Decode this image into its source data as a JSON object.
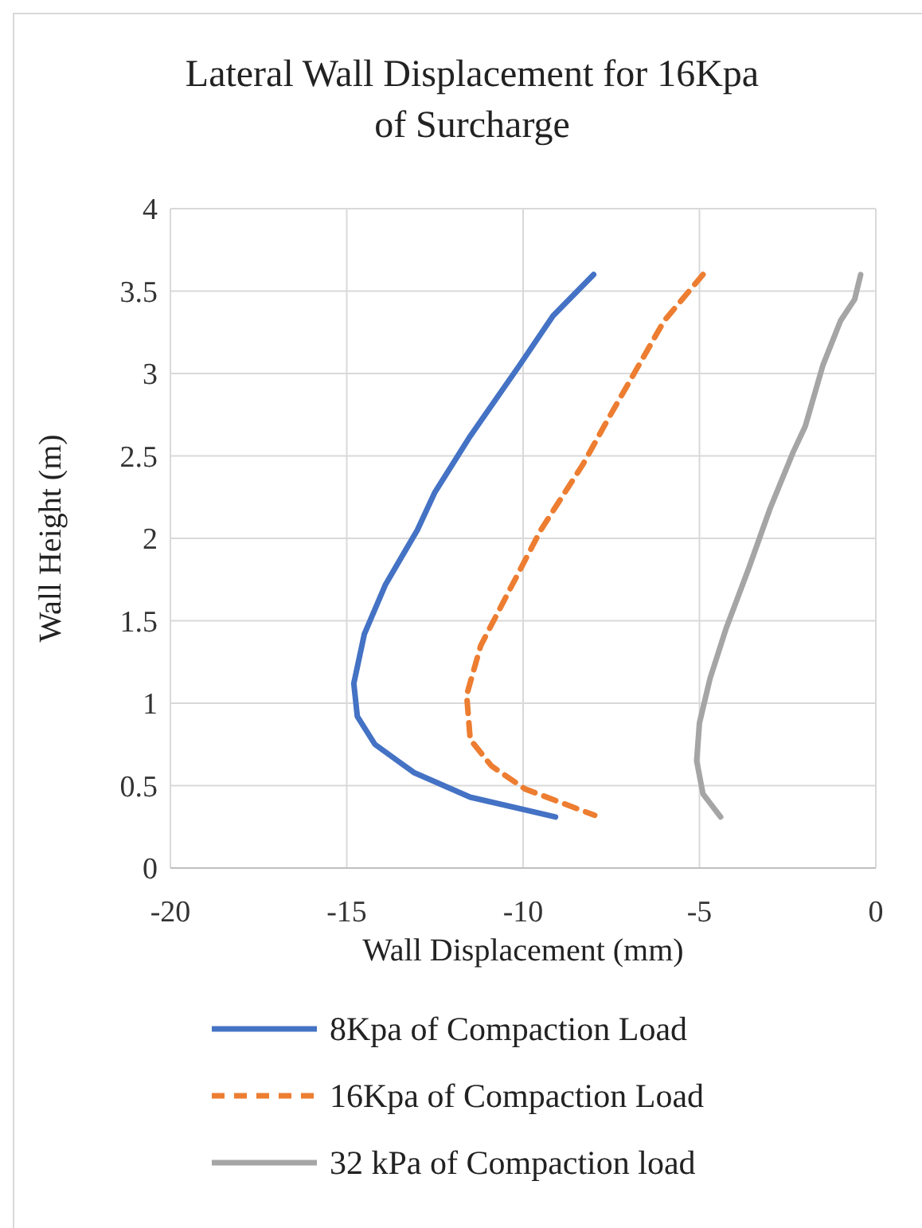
{
  "chart_data": {
    "type": "line",
    "title": "Lateral Wall Displacement for 16Kpa of Surcharge",
    "xlabel": "Wall Displacement (mm)",
    "ylabel": "Wall Height (m)",
    "xlim": [
      -20,
      0
    ],
    "xticks": [
      -20,
      -15,
      -10,
      -5,
      0
    ],
    "ylim": [
      0,
      4
    ],
    "yticks": [
      0,
      0.5,
      1,
      1.5,
      2,
      2.5,
      3,
      3.5,
      4
    ],
    "grid": true,
    "legend": "bottom",
    "marker": "none",
    "series": [
      {
        "name": "8Kpa of Compaction Load",
        "color": "#4472c4",
        "line_style": "solid",
        "x": [
          -8.0,
          -9.15,
          -10.1,
          -11.5,
          -12.5,
          -13.0,
          -13.9,
          -14.5,
          -14.8,
          -14.7,
          -14.2,
          -13.1,
          -11.5,
          -9.08
        ],
        "values": [
          3.6,
          3.35,
          3.05,
          2.62,
          2.28,
          2.05,
          1.72,
          1.42,
          1.12,
          0.92,
          0.75,
          0.58,
          0.43,
          0.31
        ]
      },
      {
        "name": "16Kpa of Compaction Load",
        "color": "#ed7d31",
        "line_style": "dashed",
        "x": [
          -4.9,
          -6.0,
          -6.8,
          -7.6,
          -8.3,
          -9.5,
          -10.4,
          -11.2,
          -11.6,
          -11.5,
          -10.9,
          -9.95,
          -7.97
        ],
        "values": [
          3.6,
          3.32,
          3.02,
          2.72,
          2.45,
          2.05,
          1.68,
          1.35,
          1.05,
          0.78,
          0.62,
          0.48,
          0.32
        ]
      },
      {
        "name": "32 kPa of Compaction load",
        "color": "#a5a5a5",
        "line_style": "solid",
        "x": [
          -0.43,
          -0.6,
          -1.0,
          -1.5,
          -2.0,
          -2.35,
          -3.0,
          -3.6,
          -4.25,
          -4.7,
          -5.0,
          -5.08,
          -4.9,
          -4.4
        ],
        "values": [
          3.6,
          3.45,
          3.32,
          3.05,
          2.68,
          2.52,
          2.18,
          1.82,
          1.45,
          1.15,
          0.88,
          0.65,
          0.45,
          0.31
        ]
      }
    ]
  }
}
